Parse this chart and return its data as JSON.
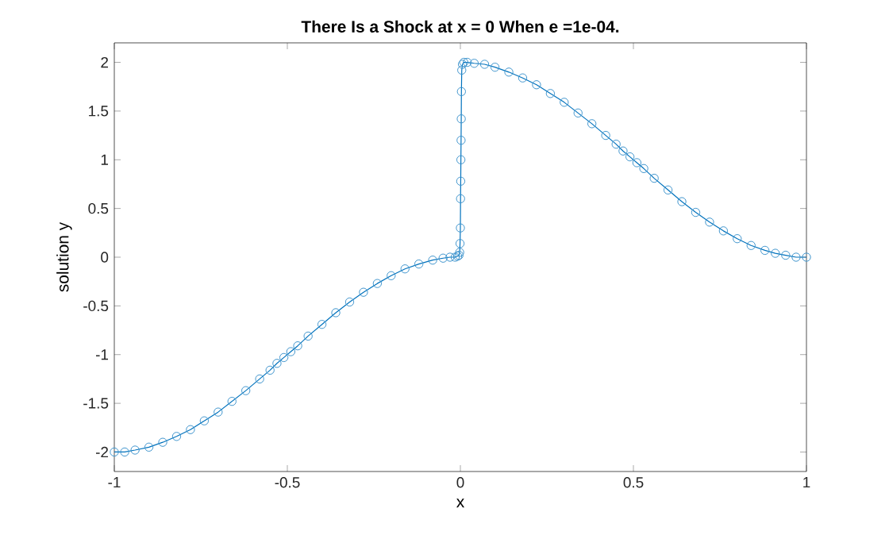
{
  "chart_data": {
    "type": "line",
    "title": "There Is a Shock at x = 0 When e =1e-04.",
    "xlabel": "x",
    "ylabel": "solution y",
    "marker": "circle",
    "line_style": "solid",
    "grid": false,
    "xlim": [
      -1,
      1
    ],
    "ylim": [
      -2.2,
      2.2
    ],
    "xticks": [
      -1,
      -0.5,
      0,
      0.5,
      1
    ],
    "yticks": [
      -2,
      -1.5,
      -1,
      -0.5,
      0,
      0.5,
      1,
      1.5,
      2
    ],
    "x": [
      -1,
      -0.97,
      -0.94,
      -0.9,
      -0.86,
      -0.82,
      -0.78,
      -0.74,
      -0.7,
      -0.66,
      -0.62,
      -0.58,
      -0.55,
      -0.53,
      -0.51,
      -0.49,
      -0.47,
      -0.44,
      -0.4,
      -0.36,
      -0.32,
      -0.28,
      -0.24,
      -0.2,
      -0.16,
      -0.12,
      -0.08,
      -0.05,
      -0.03,
      -0.015,
      -0.008,
      -0.004,
      -0.002,
      -0.001,
      0,
      0.0005,
      0.001,
      0.0015,
      0.002,
      0.0025,
      0.003,
      0.004,
      0.006,
      0.01,
      0.02,
      0.04,
      0.07,
      0.1,
      0.14,
      0.18,
      0.22,
      0.26,
      0.3,
      0.34,
      0.38,
      0.42,
      0.45,
      0.47,
      0.49,
      0.51,
      0.53,
      0.56,
      0.6,
      0.64,
      0.68,
      0.72,
      0.76,
      0.8,
      0.84,
      0.88,
      0.91,
      0.94,
      0.97,
      1
    ],
    "series": [
      {
        "color": "#0072bd",
        "values": [
          -2.0,
          -2.0,
          -1.98,
          -1.95,
          -1.9,
          -1.84,
          -1.77,
          -1.68,
          -1.59,
          -1.48,
          -1.37,
          -1.25,
          -1.16,
          -1.09,
          -1.03,
          -0.97,
          -0.91,
          -0.81,
          -0.69,
          -0.57,
          -0.46,
          -0.36,
          -0.27,
          -0.19,
          -0.12,
          -0.07,
          -0.03,
          -0.01,
          0.0,
          0.0,
          0.01,
          0.02,
          0.05,
          0.14,
          0.3,
          0.6,
          0.78,
          1.0,
          1.2,
          1.42,
          1.7,
          1.92,
          1.98,
          2.0,
          2.0,
          1.99,
          1.98,
          1.95,
          1.9,
          1.84,
          1.77,
          1.68,
          1.59,
          1.48,
          1.37,
          1.25,
          1.16,
          1.09,
          1.03,
          0.97,
          0.91,
          0.81,
          0.69,
          0.57,
          0.46,
          0.36,
          0.27,
          0.19,
          0.12,
          0.07,
          0.04,
          0.02,
          0.0,
          0.0
        ]
      }
    ]
  }
}
